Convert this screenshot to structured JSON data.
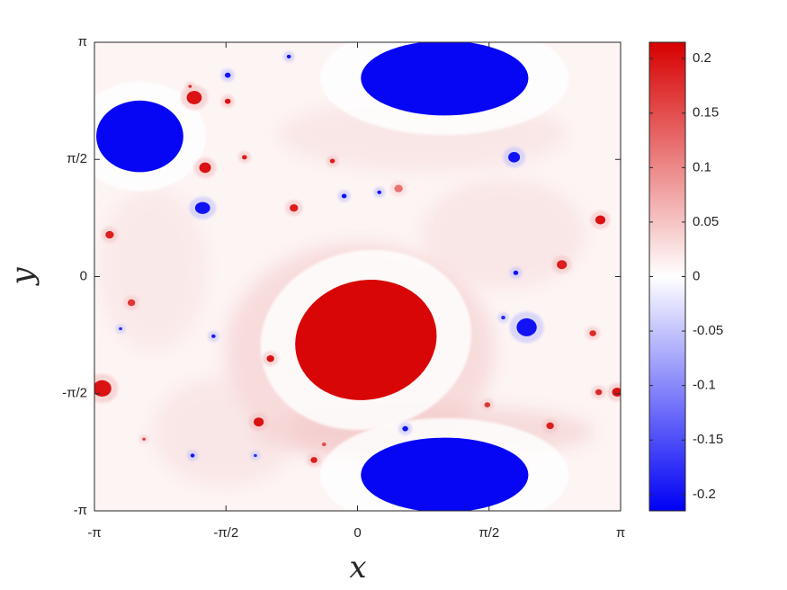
{
  "chart_data": {
    "type": "heatmap",
    "xlabel": "x",
    "ylabel": "y",
    "xlim": [
      -3.14159,
      3.14159
    ],
    "ylim": [
      -3.14159,
      3.14159
    ],
    "x_ticks": [
      {
        "value": -3.14159,
        "label": "-π"
      },
      {
        "value": -1.5708,
        "label": "-π/2"
      },
      {
        "value": 0,
        "label": "0"
      },
      {
        "value": 1.5708,
        "label": "π/2"
      },
      {
        "value": 3.14159,
        "label": "π"
      }
    ],
    "y_ticks": [
      {
        "value": -3.14159,
        "label": "-π"
      },
      {
        "value": -1.5708,
        "label": "-π/2"
      },
      {
        "value": 0,
        "label": "0"
      },
      {
        "value": 1.5708,
        "label": "π/2"
      },
      {
        "value": 3.14159,
        "label": "π"
      }
    ],
    "colorbar": {
      "range": [
        -0.215,
        0.215
      ],
      "ticks": [
        {
          "value": 0.2,
          "label": "0.2"
        },
        {
          "value": 0.15,
          "label": "0.15"
        },
        {
          "value": 0.1,
          "label": "0.1"
        },
        {
          "value": 0.05,
          "label": "0.05"
        },
        {
          "value": 0,
          "label": "0"
        },
        {
          "value": -0.05,
          "label": "-0.05"
        },
        {
          "value": -0.1,
          "label": "-0.1"
        },
        {
          "value": -0.15,
          "label": "-0.15"
        },
        {
          "value": -0.2,
          "label": "-0.2"
        }
      ],
      "colors": {
        "max": "#d70000",
        "mid": "#ffffff",
        "min": "#0000f5"
      }
    },
    "vortices": [
      {
        "x": 0.1,
        "y": -0.85,
        "rx": 0.85,
        "ry": 0.8,
        "angle": -12,
        "value": 0.21
      },
      {
        "x": 1.04,
        "y": 2.66,
        "rx": 1.0,
        "ry": 0.5,
        "angle": 0,
        "value": -0.21
      },
      {
        "x": 1.04,
        "y": -2.66,
        "rx": 1.0,
        "ry": 0.5,
        "angle": 0,
        "value": -0.21
      },
      {
        "x": -2.6,
        "y": 1.88,
        "rx": 0.52,
        "ry": 0.48,
        "angle": 0,
        "value": -0.21
      },
      {
        "x": 2.02,
        "y": -0.68,
        "rx": 0.12,
        "ry": 0.12,
        "angle": 0,
        "value": -0.2
      },
      {
        "x": 1.87,
        "y": 1.6,
        "rx": 0.07,
        "ry": 0.07,
        "angle": 0,
        "value": -0.2
      },
      {
        "x": -1.85,
        "y": 0.92,
        "rx": 0.09,
        "ry": 0.08,
        "angle": 0,
        "value": -0.2
      },
      {
        "x": -1.95,
        "y": 2.4,
        "rx": 0.09,
        "ry": 0.09,
        "angle": 0,
        "value": 0.2
      },
      {
        "x": -1.82,
        "y": 1.46,
        "rx": 0.07,
        "ry": 0.07,
        "angle": 0,
        "value": 0.2
      },
      {
        "x": -3.05,
        "y": -1.5,
        "rx": 0.11,
        "ry": 0.11,
        "angle": 0,
        "value": 0.2
      },
      {
        "x": -0.76,
        "y": 0.92,
        "rx": 0.05,
        "ry": 0.05,
        "angle": 0,
        "value": 0.19
      },
      {
        "x": 0.49,
        "y": 1.18,
        "rx": 0.05,
        "ry": 0.05,
        "angle": 0,
        "value": 0.12
      },
      {
        "x": 2.44,
        "y": 0.16,
        "rx": 0.06,
        "ry": 0.06,
        "angle": 0,
        "value": 0.19
      },
      {
        "x": 2.9,
        "y": 0.76,
        "rx": 0.06,
        "ry": 0.06,
        "angle": 0,
        "value": 0.2
      },
      {
        "x": -2.96,
        "y": 0.56,
        "rx": 0.05,
        "ry": 0.05,
        "angle": 0,
        "value": 0.19
      },
      {
        "x": -1.18,
        "y": -1.95,
        "rx": 0.06,
        "ry": 0.06,
        "angle": 0,
        "value": 0.2
      },
      {
        "x": -0.52,
        "y": -2.46,
        "rx": 0.04,
        "ry": 0.04,
        "angle": 0,
        "value": 0.19
      },
      {
        "x": -1.04,
        "y": -1.1,
        "rx": 0.045,
        "ry": 0.045,
        "angle": 0,
        "value": 0.2
      },
      {
        "x": 2.3,
        "y": -2.0,
        "rx": 0.045,
        "ry": 0.045,
        "angle": 0,
        "value": 0.19
      },
      {
        "x": 2.88,
        "y": -1.55,
        "rx": 0.04,
        "ry": 0.04,
        "angle": 0,
        "value": 0.18
      },
      {
        "x": 2.81,
        "y": -0.76,
        "rx": 0.04,
        "ry": 0.04,
        "angle": 0,
        "value": 0.18
      },
      {
        "x": 3.1,
        "y": -1.55,
        "rx": 0.06,
        "ry": 0.06,
        "angle": 0,
        "value": 0.2
      },
      {
        "x": -2.7,
        "y": -0.35,
        "rx": 0.045,
        "ry": 0.045,
        "angle": 0,
        "value": 0.17
      },
      {
        "x": -1.55,
        "y": 2.35,
        "rx": 0.035,
        "ry": 0.035,
        "angle": 0,
        "value": 0.2
      },
      {
        "x": -1.35,
        "y": 1.6,
        "rx": 0.03,
        "ry": 0.03,
        "angle": 0,
        "value": 0.19
      },
      {
        "x": -0.3,
        "y": 1.55,
        "rx": 0.03,
        "ry": 0.03,
        "angle": 0,
        "value": 0.19
      },
      {
        "x": 1.55,
        "y": -1.72,
        "rx": 0.035,
        "ry": 0.035,
        "angle": 0,
        "value": 0.17
      },
      {
        "x": 0.57,
        "y": -2.04,
        "rx": 0.035,
        "ry": 0.035,
        "angle": 0,
        "value": -0.2
      },
      {
        "x": 1.89,
        "y": 0.05,
        "rx": 0.03,
        "ry": 0.03,
        "angle": 0,
        "value": -0.2
      },
      {
        "x": -1.55,
        "y": 2.7,
        "rx": 0.035,
        "ry": 0.035,
        "angle": 0,
        "value": -0.2
      },
      {
        "x": -0.82,
        "y": 2.95,
        "rx": 0.025,
        "ry": 0.025,
        "angle": 0,
        "value": -0.2
      },
      {
        "x": -0.16,
        "y": 1.08,
        "rx": 0.03,
        "ry": 0.03,
        "angle": 0,
        "value": -0.2
      },
      {
        "x": 0.26,
        "y": 1.13,
        "rx": 0.025,
        "ry": 0.025,
        "angle": 0,
        "value": -0.2
      },
      {
        "x": -1.97,
        "y": -2.4,
        "rx": 0.025,
        "ry": 0.025,
        "angle": 0,
        "value": -0.2
      },
      {
        "x": -1.22,
        "y": -2.4,
        "rx": 0.02,
        "ry": 0.02,
        "angle": 0,
        "value": -0.18
      },
      {
        "x": -1.72,
        "y": -0.8,
        "rx": 0.025,
        "ry": 0.025,
        "angle": 0,
        "value": -0.19
      },
      {
        "x": 1.74,
        "y": -0.55,
        "rx": 0.025,
        "ry": 0.025,
        "angle": 0,
        "value": -0.18
      },
      {
        "x": -2.83,
        "y": -0.7,
        "rx": 0.02,
        "ry": 0.02,
        "angle": 0,
        "value": -0.18
      },
      {
        "x": -2.0,
        "y": 2.55,
        "rx": 0.02,
        "ry": 0.02,
        "angle": 0,
        "value": 0.18
      },
      {
        "x": -0.4,
        "y": -2.25,
        "rx": 0.025,
        "ry": 0.025,
        "angle": 0,
        "value": 0.15
      },
      {
        "x": -2.55,
        "y": -2.18,
        "rx": 0.02,
        "ry": 0.02,
        "angle": 0,
        "value": 0.16
      }
    ]
  }
}
